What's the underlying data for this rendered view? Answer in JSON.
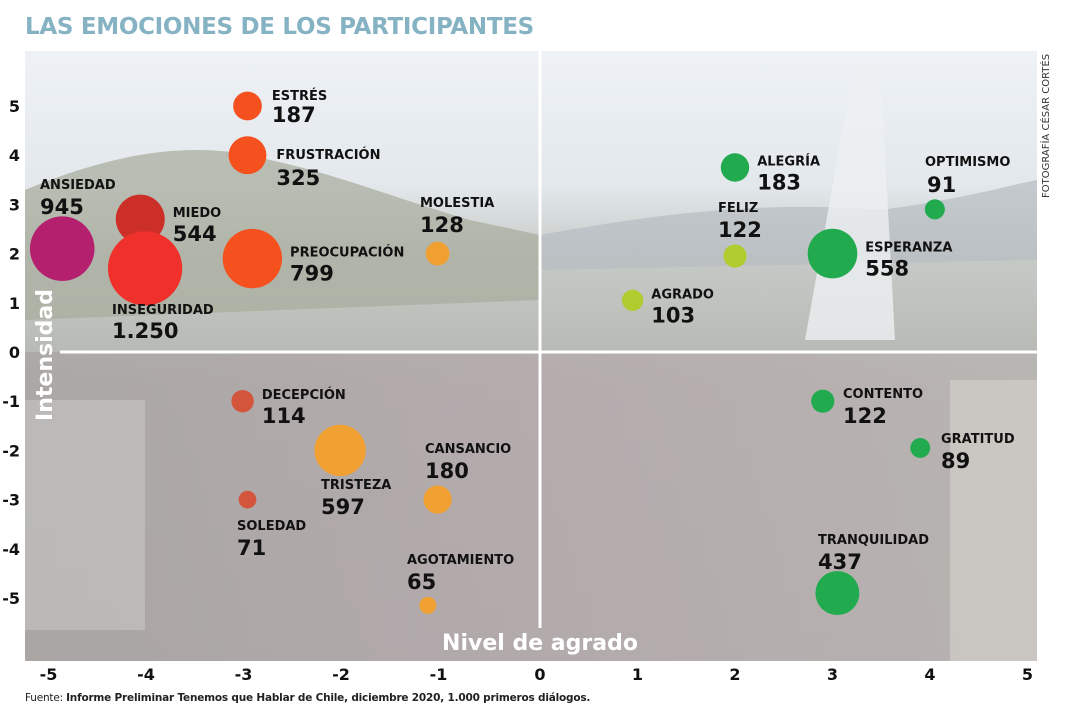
{
  "header": {
    "title": "LAS EMOCIONES DE LOS PARTICIPANTES",
    "photo_credit": "FOTOGRAFÍA CÉSAR CORTÉS"
  },
  "footer": {
    "source_label": "Fuente:",
    "source_text": "Informe Preliminar Tenemos que Hablar de Chile, diciembre 2020, 1.000 primeros diálogos."
  },
  "colors": {
    "title": "#86b3c4",
    "magenta": "#b5206e",
    "red": "#f0302a",
    "dark_red": "#cc2f28",
    "orange_red": "#f4511e",
    "brick": "#d2553c",
    "amber": "#f0a030",
    "green": "#22aa4e",
    "lime": "#b0cc2e"
  },
  "chart_data": {
    "type": "scatter",
    "title": "LAS EMOCIONES DE LOS PARTICIPANTES",
    "xlabel": "Nivel de agrado",
    "ylabel": "Intensidad",
    "xlim": [
      -5,
      5
    ],
    "ylim": [
      -5,
      5
    ],
    "xticks": [
      "-5",
      "-4",
      "-3",
      "-2",
      "-1",
      "0",
      "1",
      "2",
      "3",
      "4",
      "5"
    ],
    "yticks": [
      "5",
      "4",
      "3",
      "2",
      "1",
      "0",
      "-1",
      "-2",
      "-3",
      "-4",
      "-5"
    ],
    "grid": false,
    "bubble_size_field": "count",
    "points": [
      {
        "name": "ESTRÉS",
        "count": 187,
        "value_label": "187",
        "x": -3.0,
        "y": 5.0,
        "color": "#f4511e",
        "label_pos": "right-up"
      },
      {
        "name": "FRUSTRACIÓN",
        "count": 325,
        "value_label": "325",
        "x": -3.0,
        "y": 4.0,
        "color": "#f4511e",
        "label_pos": "right-down"
      },
      {
        "name": "ANSIEDAD",
        "count": 945,
        "value_label": "945",
        "x": -4.9,
        "y": 2.1,
        "color": "#b5206e",
        "label_pos": "top"
      },
      {
        "name": "MIEDO",
        "count": 544,
        "value_label": "544",
        "x": -4.1,
        "y": 2.7,
        "color": "#cc2f28",
        "label_pos": "right"
      },
      {
        "name": "INSEGURIDAD",
        "count": 1250,
        "value_label": "1.250",
        "x": -4.05,
        "y": 1.7,
        "color": "#f0302a",
        "label_pos": "bottom"
      },
      {
        "name": "PREOCUPACIÓN",
        "count": 799,
        "value_label": "799",
        "x": -2.95,
        "y": 1.9,
        "color": "#f4511e",
        "label_pos": "right"
      },
      {
        "name": "MOLESTIA",
        "count": 128,
        "value_label": "128",
        "x": -1.05,
        "y": 2.0,
        "color": "#f0a030",
        "label_pos": "top"
      },
      {
        "name": "ALEGRÍA",
        "count": 183,
        "value_label": "183",
        "x": 2.0,
        "y": 3.75,
        "color": "#22aa4e",
        "label_pos": "right"
      },
      {
        "name": "OPTIMISMO",
        "count": 91,
        "value_label": "91",
        "x": 4.05,
        "y": 2.9,
        "color": "#22aa4e",
        "label_pos": "top"
      },
      {
        "name": "FELIZ",
        "count": 122,
        "value_label": "122",
        "x": 2.0,
        "y": 1.95,
        "color": "#b0cc2e",
        "label_pos": "top"
      },
      {
        "name": "ESPERANZA",
        "count": 558,
        "value_label": "558",
        "x": 3.0,
        "y": 2.0,
        "color": "#22aa4e",
        "label_pos": "right"
      },
      {
        "name": "AGRADO",
        "count": 103,
        "value_label": "103",
        "x": 0.95,
        "y": 1.05,
        "color": "#b0cc2e",
        "label_pos": "right"
      },
      {
        "name": "DECEPCIÓN",
        "count": 114,
        "value_label": "114",
        "x": -3.05,
        "y": -1.0,
        "color": "#d2553c",
        "label_pos": "right"
      },
      {
        "name": "TRISTEZA",
        "count": 597,
        "value_label": "597",
        "x": -2.05,
        "y": -2.0,
        "color": "#f0a030",
        "label_pos": "bottom"
      },
      {
        "name": "SOLEDAD",
        "count": 71,
        "value_label": "71",
        "x": -3.0,
        "y": -3.0,
        "color": "#d2553c",
        "label_pos": "bottom"
      },
      {
        "name": "CANSANCIO",
        "count": 180,
        "value_label": "180",
        "x": -1.05,
        "y": -3.0,
        "color": "#f0a030",
        "label_pos": "top"
      },
      {
        "name": "AGOTAMIENTO",
        "count": 65,
        "value_label": "65",
        "x": -1.15,
        "y": -5.15,
        "color": "#f0a030",
        "label_pos": "top"
      },
      {
        "name": "CONTENTO",
        "count": 122,
        "value_label": "122",
        "x": 2.9,
        "y": -1.0,
        "color": "#22aa4e",
        "label_pos": "right"
      },
      {
        "name": "GRATITUD",
        "count": 89,
        "value_label": "89",
        "x": 3.9,
        "y": -1.95,
        "color": "#22aa4e",
        "label_pos": "right"
      },
      {
        "name": "TRANQUILIDAD",
        "count": 437,
        "value_label": "437",
        "x": 3.05,
        "y": -4.9,
        "color": "#22aa4e",
        "label_pos": "top"
      }
    ]
  }
}
